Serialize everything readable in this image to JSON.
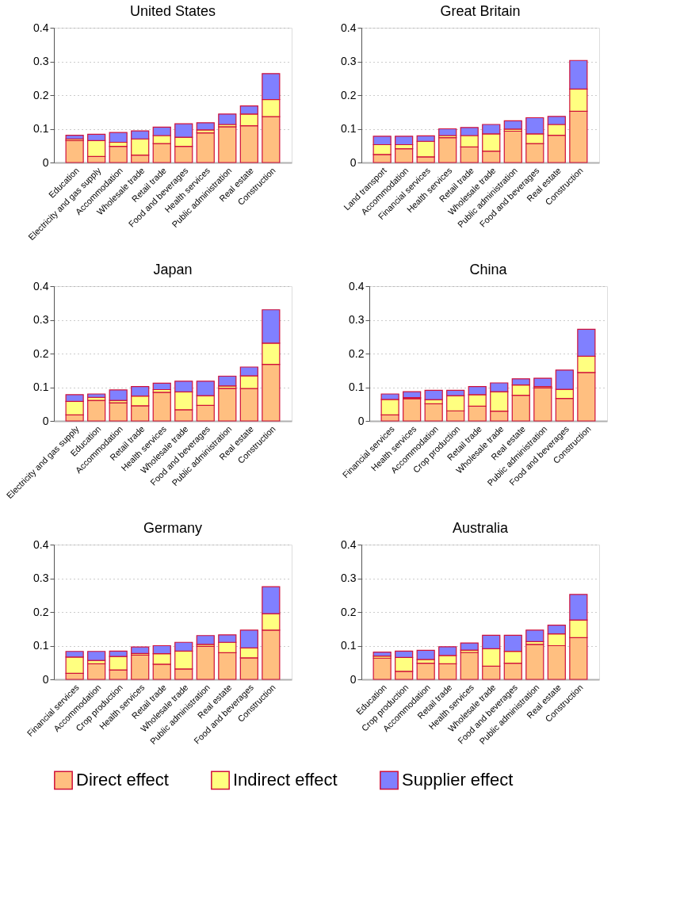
{
  "chart_data": [
    {
      "type": "bar",
      "title": "United States",
      "stacked": true,
      "ylim": [
        0,
        0.4
      ],
      "yticks": [
        0,
        0.1,
        0.2,
        0.3,
        0.4
      ],
      "grid": "y",
      "legend": "bottom",
      "categories": [
        "Education",
        "Electricity and gas supply",
        "Accommodation",
        "Wholesale trade",
        "Retail trade",
        "Food and beverages",
        "Health services",
        "Public administration",
        "Real estate",
        "Construction"
      ],
      "series": [
        {
          "name": "Direct effect",
          "color": "#ffbf80",
          "values": [
            0.065,
            0.018,
            0.048,
            0.022,
            0.056,
            0.048,
            0.088,
            0.106,
            0.109,
            0.136
          ]
        },
        {
          "name": "Indirect effect",
          "color": "#ffff80",
          "values": [
            0.005,
            0.047,
            0.012,
            0.048,
            0.024,
            0.027,
            0.009,
            0.007,
            0.035,
            0.051
          ]
        },
        {
          "name": "Supplier effect",
          "color": "#8080ff",
          "values": [
            0.011,
            0.019,
            0.029,
            0.024,
            0.025,
            0.04,
            0.021,
            0.031,
            0.024,
            0.077
          ]
        }
      ]
    },
    {
      "type": "bar",
      "title": "Great Britain",
      "stacked": true,
      "ylim": [
        0,
        0.4
      ],
      "yticks": [
        0,
        0.1,
        0.2,
        0.3,
        0.4
      ],
      "grid": "y",
      "legend": "bottom",
      "categories": [
        "Land transport",
        "Accommodation",
        "Financial services",
        "Health services",
        "Retail trade",
        "Wholesale trade",
        "Public administration",
        "Food and beverages",
        "Real estate",
        "Construction"
      ],
      "series": [
        {
          "name": "Direct effect",
          "color": "#ffbf80",
          "values": [
            0.024,
            0.041,
            0.017,
            0.074,
            0.046,
            0.034,
            0.093,
            0.056,
            0.081,
            0.152
          ]
        },
        {
          "name": "Indirect effect",
          "color": "#ffff80",
          "values": [
            0.029,
            0.012,
            0.046,
            0.006,
            0.034,
            0.051,
            0.006,
            0.029,
            0.032,
            0.066
          ]
        },
        {
          "name": "Supplier effect",
          "color": "#8080ff",
          "values": [
            0.025,
            0.025,
            0.016,
            0.02,
            0.024,
            0.028,
            0.025,
            0.048,
            0.024,
            0.085
          ]
        }
      ]
    },
    {
      "type": "bar",
      "title": "Japan",
      "stacked": true,
      "ylim": [
        0,
        0.4
      ],
      "yticks": [
        0,
        0.1,
        0.2,
        0.3,
        0.4
      ],
      "grid": "y",
      "legend": "bottom",
      "categories": [
        "Electricity and gas supply",
        "Education",
        "Accommodation",
        "Retail trade",
        "Health services",
        "Wholesale trade",
        "Food and beverages",
        "Public administration",
        "Real estate",
        "Construction"
      ],
      "series": [
        {
          "name": "Direct effect",
          "color": "#ffbf80",
          "values": [
            0.018,
            0.061,
            0.054,
            0.045,
            0.085,
            0.033,
            0.046,
            0.097,
            0.096,
            0.168
          ]
        },
        {
          "name": "Indirect effect",
          "color": "#ffff80",
          "values": [
            0.04,
            0.009,
            0.007,
            0.029,
            0.008,
            0.053,
            0.029,
            0.007,
            0.038,
            0.063
          ]
        },
        {
          "name": "Supplier effect",
          "color": "#8080ff",
          "values": [
            0.02,
            0.01,
            0.031,
            0.028,
            0.019,
            0.032,
            0.043,
            0.029,
            0.026,
            0.099
          ]
        }
      ]
    },
    {
      "type": "bar",
      "title": "China",
      "stacked": true,
      "ylim": [
        0,
        0.4
      ],
      "yticks": [
        0,
        0.1,
        0.2,
        0.3,
        0.4
      ],
      "grid": "y",
      "legend": "bottom",
      "categories": [
        "Financial services",
        "Health services",
        "Accommodation",
        "Crop production",
        "Retail trade",
        "Wholesale trade",
        "Real estate",
        "Public administration",
        "Food and beverages",
        "Construction"
      ],
      "series": [
        {
          "name": "Direct effect",
          "color": "#ffbf80",
          "values": [
            0.018,
            0.066,
            0.051,
            0.03,
            0.044,
            0.029,
            0.076,
            0.098,
            0.067,
            0.144
          ]
        },
        {
          "name": "Indirect effect",
          "color": "#ffff80",
          "values": [
            0.046,
            0.003,
            0.012,
            0.045,
            0.034,
            0.058,
            0.031,
            0.004,
            0.027,
            0.048
          ]
        },
        {
          "name": "Supplier effect",
          "color": "#8080ff",
          "values": [
            0.016,
            0.018,
            0.028,
            0.016,
            0.024,
            0.026,
            0.018,
            0.025,
            0.057,
            0.08
          ]
        }
      ]
    },
    {
      "type": "bar",
      "title": "Germany",
      "stacked": true,
      "ylim": [
        0,
        0.4
      ],
      "yticks": [
        0,
        0.1,
        0.2,
        0.3,
        0.4
      ],
      "grid": "y",
      "legend": "bottom",
      "categories": [
        "Financial services",
        "Accommodation",
        "Crop production",
        "Health services",
        "Retail trade",
        "Wholesale trade",
        "Public administration",
        "Real estate",
        "Food and beverages",
        "Construction"
      ],
      "series": [
        {
          "name": "Direct effect",
          "color": "#ffbf80",
          "values": [
            0.018,
            0.046,
            0.028,
            0.072,
            0.045,
            0.031,
            0.098,
            0.079,
            0.064,
            0.146
          ]
        },
        {
          "name": "Indirect effect",
          "color": "#ffff80",
          "values": [
            0.048,
            0.01,
            0.04,
            0.005,
            0.031,
            0.053,
            0.006,
            0.031,
            0.029,
            0.049
          ]
        },
        {
          "name": "Supplier effect",
          "color": "#8080ff",
          "values": [
            0.017,
            0.027,
            0.016,
            0.019,
            0.024,
            0.026,
            0.026,
            0.022,
            0.053,
            0.08
          ]
        }
      ]
    },
    {
      "type": "bar",
      "title": "Australia",
      "stacked": true,
      "ylim": [
        0,
        0.4
      ],
      "yticks": [
        0,
        0.1,
        0.2,
        0.3,
        0.4
      ],
      "grid": "y",
      "legend": "bottom",
      "categories": [
        "Education",
        "Crop production",
        "Accommodation",
        "Retail trade",
        "Health services",
        "Wholesale trade",
        "Food and beverages",
        "Public administration",
        "Real estate",
        "Construction"
      ],
      "series": [
        {
          "name": "Direct effect",
          "color": "#ffbf80",
          "values": [
            0.063,
            0.024,
            0.048,
            0.046,
            0.08,
            0.039,
            0.048,
            0.104,
            0.1,
            0.124
          ]
        },
        {
          "name": "Indirect effect",
          "color": "#ffff80",
          "values": [
            0.006,
            0.041,
            0.011,
            0.025,
            0.007,
            0.052,
            0.035,
            0.008,
            0.035,
            0.052
          ]
        },
        {
          "name": "Supplier effect",
          "color": "#8080ff",
          "values": [
            0.012,
            0.019,
            0.027,
            0.026,
            0.021,
            0.04,
            0.048,
            0.034,
            0.026,
            0.076
          ]
        }
      ]
    }
  ]
}
